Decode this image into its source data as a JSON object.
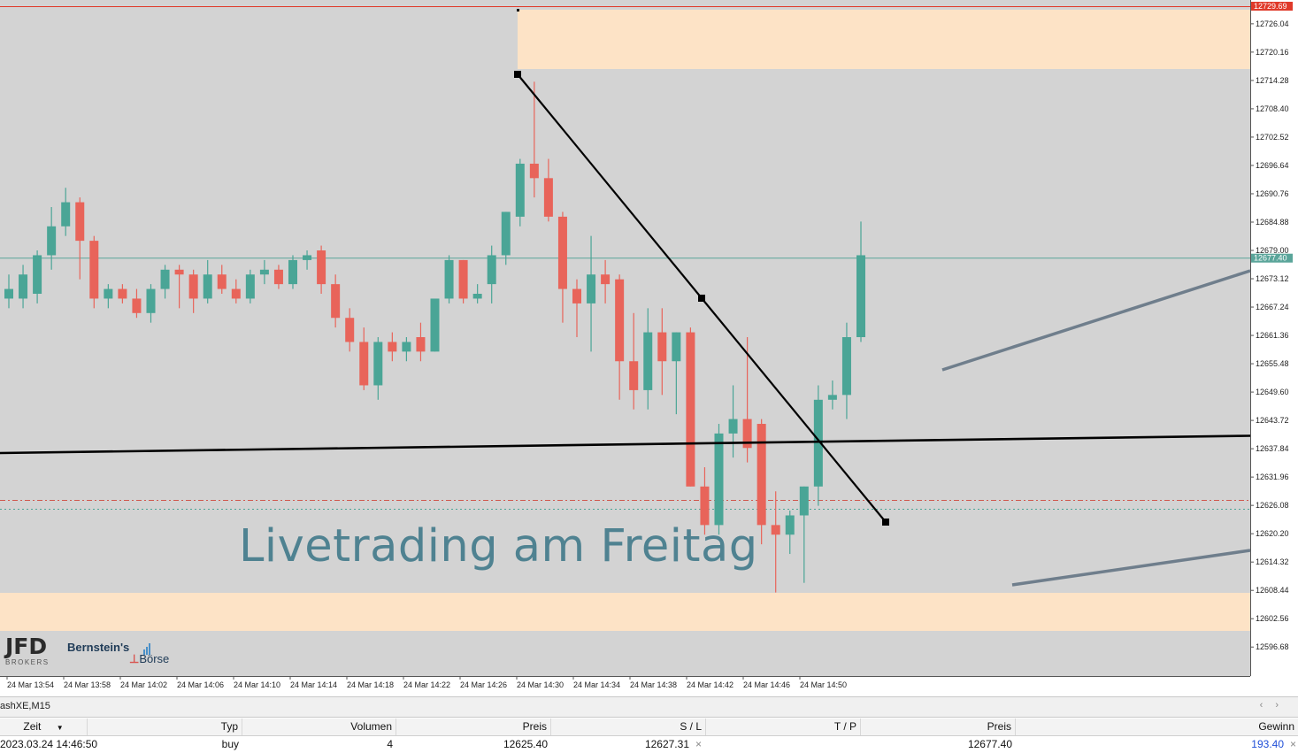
{
  "chart": {
    "symbol_tab": "ashXE,M15",
    "price_scale": {
      "max": 12729.69,
      "min": 12590.0,
      "ticks": [
        "12726.04",
        "12720.16",
        "12714.28",
        "12708.40",
        "12702.52",
        "12696.64",
        "12690.76",
        "12684.88",
        "12679.00",
        "12673.12",
        "12667.24",
        "12661.36",
        "12655.48",
        "12649.60",
        "12643.72",
        "12637.84",
        "12631.96",
        "12626.08",
        "12620.20",
        "12614.32",
        "12608.44",
        "12602.56",
        "12596.68"
      ],
      "tick_values": [
        12726.04,
        12720.16,
        12714.28,
        12708.4,
        12702.52,
        12696.64,
        12690.76,
        12684.88,
        12679.0,
        12673.12,
        12667.24,
        12661.36,
        12655.48,
        12649.6,
        12643.72,
        12637.84,
        12631.96,
        12626.08,
        12620.2,
        12614.32,
        12608.44,
        12602.56,
        12596.68
      ],
      "highlight_top_label": "12729.69",
      "current_price_label": "12677.40",
      "current_price": 12677.4
    },
    "time_labels": [
      "24 Mar 13:54",
      "24 Mar 13:58",
      "24 Mar 14:02",
      "24 Mar 14:06",
      "24 Mar 14:10",
      "24 Mar 14:14",
      "24 Mar 14:18",
      "24 Mar 14:22",
      "24 Mar 14:26",
      "24 Mar 14:30",
      "24 Mar 14:34",
      "24 Mar 14:38",
      "24 Mar 14:42",
      "24 Mar 14:46",
      "24 Mar 14:50"
    ],
    "overlay_title": "Livetrading am Freitag",
    "colors": {
      "background": "#d3d3d3",
      "bull": "#4aa596",
      "bear": "#e8645a",
      "zone": "#fde3c6",
      "current_line": "#5aa59a",
      "top_line": "#e03a2a",
      "trend_black": "#000000",
      "channel_gray": "#6f7e8c",
      "sl_line": "#d0584d",
      "entry_line": "#4aa596"
    },
    "candles": [
      {
        "o": 12669,
        "h": 12674,
        "l": 12667,
        "c": 12671
      },
      {
        "o": 12669,
        "h": 12676,
        "l": 12667,
        "c": 12674
      },
      {
        "o": 12670,
        "h": 12679,
        "l": 12668,
        "c": 12678
      },
      {
        "o": 12678,
        "h": 12688,
        "l": 12675,
        "c": 12684
      },
      {
        "o": 12684,
        "h": 12692,
        "l": 12682,
        "c": 12689
      },
      {
        "o": 12689,
        "h": 12690,
        "l": 12673,
        "c": 12681
      },
      {
        "o": 12681,
        "h": 12682,
        "l": 12667,
        "c": 12669
      },
      {
        "o": 12669,
        "h": 12672,
        "l": 12667,
        "c": 12671
      },
      {
        "o": 12671,
        "h": 12672,
        "l": 12668,
        "c": 12669
      },
      {
        "o": 12669,
        "h": 12671,
        "l": 12665,
        "c": 12666
      },
      {
        "o": 12666,
        "h": 12672,
        "l": 12664,
        "c": 12671
      },
      {
        "o": 12671,
        "h": 12676,
        "l": 12669,
        "c": 12675
      },
      {
        "o": 12675,
        "h": 12676,
        "l": 12667,
        "c": 12674
      },
      {
        "o": 12674,
        "h": 12675,
        "l": 12666,
        "c": 12669
      },
      {
        "o": 12669,
        "h": 12677,
        "l": 12668,
        "c": 12674
      },
      {
        "o": 12674,
        "h": 12676,
        "l": 12670,
        "c": 12671
      },
      {
        "o": 12671,
        "h": 12673,
        "l": 12668,
        "c": 12669
      },
      {
        "o": 12669,
        "h": 12675,
        "l": 12668,
        "c": 12674
      },
      {
        "o": 12674,
        "h": 12677,
        "l": 12672,
        "c": 12675
      },
      {
        "o": 12675,
        "h": 12676,
        "l": 12671,
        "c": 12672
      },
      {
        "o": 12672,
        "h": 12678,
        "l": 12671,
        "c": 12677
      },
      {
        "o": 12677,
        "h": 12679,
        "l": 12675,
        "c": 12678
      },
      {
        "o": 12679,
        "h": 12680,
        "l": 12670,
        "c": 12672
      },
      {
        "o": 12672,
        "h": 12674,
        "l": 12663,
        "c": 12665
      },
      {
        "o": 12665,
        "h": 12667,
        "l": 12658,
        "c": 12660
      },
      {
        "o": 12660,
        "h": 12663,
        "l": 12650,
        "c": 12651
      },
      {
        "o": 12651,
        "h": 12661,
        "l": 12648,
        "c": 12660
      },
      {
        "o": 12660,
        "h": 12662,
        "l": 12656,
        "c": 12658
      },
      {
        "o": 12658,
        "h": 12661,
        "l": 12656,
        "c": 12660
      },
      {
        "o": 12661,
        "h": 12664,
        "l": 12656,
        "c": 12658
      },
      {
        "o": 12658,
        "h": 12668,
        "l": 12658,
        "c": 12669
      },
      {
        "o": 12669,
        "h": 12678,
        "l": 12668,
        "c": 12677
      },
      {
        "o": 12677,
        "h": 12677,
        "l": 12668,
        "c": 12669
      },
      {
        "o": 12669,
        "h": 12672,
        "l": 12668,
        "c": 12670
      },
      {
        "o": 12672,
        "h": 12680,
        "l": 12668,
        "c": 12678
      },
      {
        "o": 12678,
        "h": 12687,
        "l": 12676,
        "c": 12687
      },
      {
        "o": 12686,
        "h": 12698,
        "l": 12684,
        "c": 12697
      },
      {
        "o": 12697,
        "h": 12714,
        "l": 12690,
        "c": 12694
      },
      {
        "o": 12694,
        "h": 12698,
        "l": 12685,
        "c": 12686
      },
      {
        "o": 12686,
        "h": 12687,
        "l": 12664,
        "c": 12671
      },
      {
        "o": 12671,
        "h": 12673,
        "l": 12661,
        "c": 12668
      },
      {
        "o": 12668,
        "h": 12682,
        "l": 12658,
        "c": 12674
      },
      {
        "o": 12674,
        "h": 12677,
        "l": 12668,
        "c": 12672
      },
      {
        "o": 12673,
        "h": 12674,
        "l": 12648,
        "c": 12656
      },
      {
        "o": 12656,
        "h": 12666,
        "l": 12646,
        "c": 12650
      },
      {
        "o": 12650,
        "h": 12667,
        "l": 12646,
        "c": 12662
      },
      {
        "o": 12662,
        "h": 12667,
        "l": 12649,
        "c": 12656
      },
      {
        "o": 12656,
        "h": 12662,
        "l": 12645,
        "c": 12662
      },
      {
        "o": 12662,
        "h": 12663,
        "l": 12630,
        "c": 12630
      },
      {
        "o": 12630,
        "h": 12634,
        "l": 12620,
        "c": 12622
      },
      {
        "o": 12622,
        "h": 12643,
        "l": 12620,
        "c": 12641
      },
      {
        "o": 12641,
        "h": 12651,
        "l": 12636,
        "c": 12644
      },
      {
        "o": 12644,
        "h": 12661,
        "l": 12635,
        "c": 12638
      },
      {
        "o": 12643,
        "h": 12644,
        "l": 12618,
        "c": 12622
      },
      {
        "o": 12622,
        "h": 12629,
        "l": 12608,
        "c": 12620
      },
      {
        "o": 12620,
        "h": 12625,
        "l": 12616,
        "c": 12624
      },
      {
        "o": 12624,
        "h": 12630,
        "l": 12610,
        "c": 12630
      },
      {
        "o": 12630,
        "h": 12651,
        "l": 12626,
        "c": 12648
      },
      {
        "o": 12648,
        "h": 12652,
        "l": 12646,
        "c": 12649
      },
      {
        "o": 12649,
        "h": 12664,
        "l": 12644,
        "c": 12661
      },
      {
        "o": 12661,
        "h": 12685,
        "l": 12660,
        "c": 12678
      }
    ]
  },
  "logos": {
    "jfd_text": "JFD",
    "jfd_sub": "BROKERS",
    "bb_name": "Bernstein's",
    "bb_sub": "Börse"
  },
  "trades": {
    "headers": {
      "zeit": "Zeit",
      "typ": "Typ",
      "volumen": "Volumen",
      "preis": "Preis",
      "sl": "S / L",
      "tp": "T / P",
      "preis2": "Preis",
      "gewinn": "Gewinn"
    },
    "row": {
      "zeit": "2023.03.24 14:46:50",
      "typ": "buy",
      "volumen": "4",
      "preis": "12625.40",
      "sl": "12627.31",
      "tp": "",
      "preis2": "12677.40",
      "gewinn": "193.40"
    }
  }
}
